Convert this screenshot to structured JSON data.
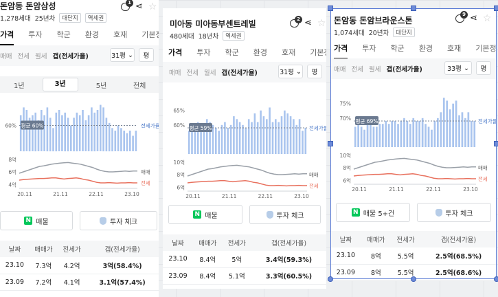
{
  "cards": [
    {
      "name": "돈암동 돈암삼성",
      "households": "1,278세대",
      "age": "25년차",
      "tags": [
        "대단지",
        "역세권"
      ],
      "comment_count": "1",
      "tabs": [
        "가격",
        "투자",
        "학군",
        "환경",
        "호재",
        "기본정보"
      ],
      "deal_types": [
        "매매",
        "전세",
        "월세",
        "갭(전세가율)"
      ],
      "size": "31평",
      "size_unit": "평",
      "periods": [
        "1년",
        "3년",
        "5년",
        "전체"
      ],
      "avg_label": "평균 60%",
      "gap_axis": [
        "60%"
      ],
      "price_axis": [
        "8억",
        "6억",
        "4억"
      ],
      "x_labels": [
        "20.11",
        "21.11",
        "22.11",
        "23.10"
      ],
      "legend_bar": "전세가율",
      "legend_sale": "매매",
      "legend_jeonse": "전세",
      "btn_listing": "매물",
      "btn_invest": "투자 체크",
      "table_headers": [
        "날짜",
        "매매가",
        "전세가",
        "갭(전세가율)"
      ],
      "rows": [
        [
          "23.10",
          "7.3억",
          "4.2억",
          "3억(58.4%)"
        ],
        [
          "23.09",
          "7.2억",
          "4.1억",
          "3.1억(57.4%)"
        ]
      ]
    },
    {
      "name": "미아동 미아동부센트레빌",
      "households": "480세대",
      "age": "18년차",
      "tags": [
        "역세권"
      ],
      "comment_count": "2",
      "tabs": [
        "가격",
        "투자",
        "학군",
        "환경",
        "호재",
        "기본정보"
      ],
      "deal_types": [
        "매매",
        "전세",
        "월세",
        "갭(전세가율)"
      ],
      "size": "31평",
      "size_unit": "평",
      "avg_label": "평균 59%",
      "gap_axis": [
        "65%",
        "60%"
      ],
      "price_axis": [
        "10억",
        "8억",
        "6억"
      ],
      "x_labels": [
        "20.11",
        "21.11",
        "22.11",
        "23.10"
      ],
      "legend_bar": "전세가율",
      "legend_sale": "매매",
      "legend_jeonse": "전세",
      "btn_listing": "매물",
      "btn_invest": "투자 체크",
      "table_headers": [
        "날짜",
        "매매가",
        "전세가",
        "갭(전세가율)"
      ],
      "rows": [
        [
          "23.10",
          "8.4억",
          "5억",
          "3.4억(59.3%)"
        ],
        [
          "23.09",
          "8.4억",
          "5.1억",
          "3.3억(60.5%)"
        ]
      ]
    },
    {
      "name": "돈암동 돈암브라운스톤",
      "households": "1,074세대",
      "age": "20년차",
      "tags": [
        "대단지"
      ],
      "comment_count": "9",
      "tabs": [
        "가격",
        "투자",
        "학군",
        "환경",
        "호재",
        "기본정보"
      ],
      "deal_types": [
        "매매",
        "전세",
        "월세",
        "갭(전세가율)"
      ],
      "size": "33평",
      "size_unit": "평",
      "avg_label": "평균 69%",
      "gap_axis": [
        "75%",
        "70%"
      ],
      "price_axis": [
        "10억",
        "8억",
        "6억"
      ],
      "x_labels": [
        "20.11",
        "21.11",
        "22.11",
        "23.10"
      ],
      "legend_bar": "전세가율",
      "legend_sale": "매매",
      "legend_jeonse": "전세",
      "btn_listing": "매물 5+건",
      "btn_invest": "투자 체크",
      "table_headers": [
        "날짜",
        "매매가",
        "전세가",
        "갭(전세가율)"
      ],
      "rows": [
        [
          "23.10",
          "8억",
          "5.5억",
          "2.5억(68.5%)"
        ],
        [
          "23.09",
          "8억",
          "5.5억",
          "2.5억(68.6%)"
        ]
      ]
    }
  ],
  "chart_data": [
    {
      "type": "bar",
      "title": "",
      "ylabel": "전세가율",
      "ylim": [
        50,
        70
      ],
      "average": 60,
      "values": [
        64,
        67,
        66,
        63,
        64,
        65,
        62,
        66,
        64,
        67,
        63,
        59,
        65,
        66,
        64,
        65,
        63,
        60,
        63,
        65,
        64,
        66,
        62,
        64,
        67,
        65,
        66,
        68,
        67,
        63,
        61,
        59,
        58,
        60,
        59,
        58,
        57,
        58,
        56,
        58
      ]
    },
    {
      "type": "bar",
      "title": "",
      "ylabel": "전세가율",
      "ylim": [
        50,
        68
      ],
      "average": 59,
      "values": [
        58,
        60,
        59,
        61,
        60,
        59,
        62,
        61,
        60,
        59,
        58,
        60,
        61,
        59,
        60,
        63,
        62,
        61,
        60,
        59,
        62,
        61,
        64,
        61,
        65,
        63,
        62,
        66,
        61,
        62,
        61,
        63,
        65,
        64,
        63,
        62,
        60,
        62,
        58,
        59
      ]
    },
    {
      "type": "bar",
      "title": "",
      "ylabel": "전세가율",
      "ylim": [
        60,
        78
      ],
      "average": 69,
      "values": [
        67,
        68,
        67,
        66,
        68,
        69,
        67,
        67,
        68,
        68,
        69,
        68,
        69,
        69,
        68,
        69,
        70,
        69,
        68,
        70,
        69,
        69,
        70,
        68,
        67,
        66,
        69,
        70,
        72,
        77,
        76,
        73,
        75,
        76,
        71,
        72,
        70,
        72,
        69,
        69
      ]
    }
  ]
}
